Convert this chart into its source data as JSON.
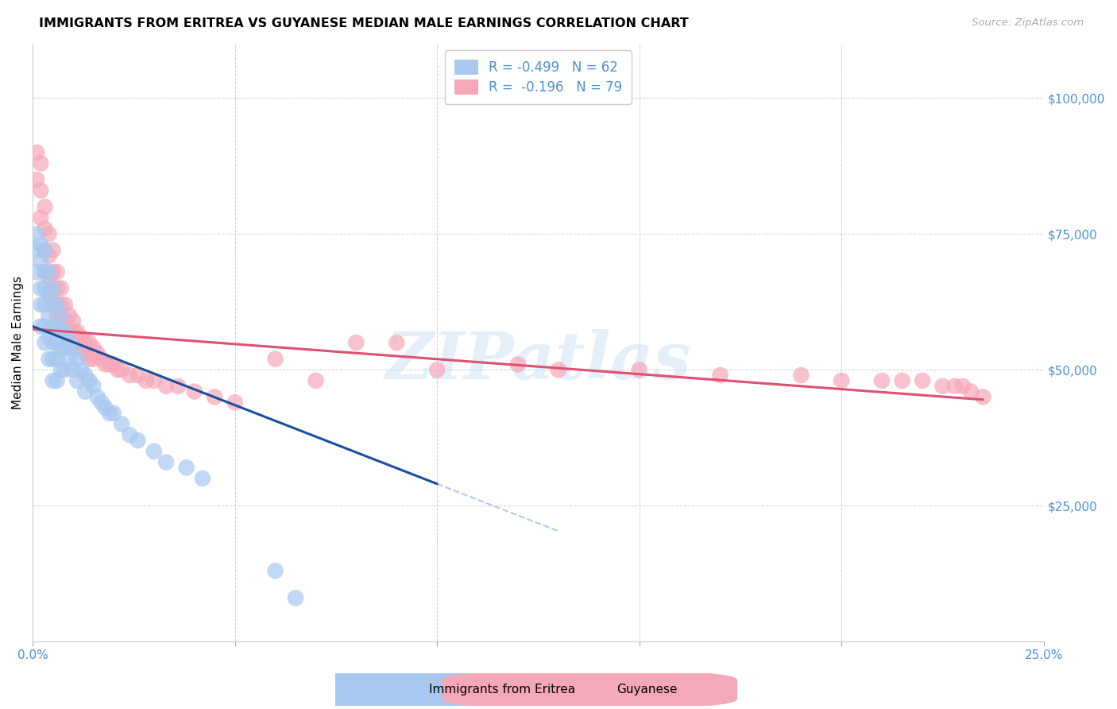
{
  "title": "IMMIGRANTS FROM ERITREA VS GUYANESE MEDIAN MALE EARNINGS CORRELATION CHART",
  "source": "Source: ZipAtlas.com",
  "ylabel": "Median Male Earnings",
  "xlim": [
    0.0,
    0.25
  ],
  "ylim": [
    0,
    110000
  ],
  "legend1_label": "R = -0.499   N = 62",
  "legend2_label": "R =  -0.196   N = 79",
  "legend1_color": "#a8c8f0",
  "legend2_color": "#f5a8b8",
  "line1_color": "#1a4fa0",
  "line2_color": "#e05070",
  "line1_dash_color": "#b0c8e8",
  "watermark": "ZIPatlas",
  "bottom_legend1": "Immigrants from Eritrea",
  "bottom_legend2": "Guyanese",
  "tick_color": "#4a90d9",
  "eritrea_x": [
    0.001,
    0.001,
    0.001,
    0.002,
    0.002,
    0.002,
    0.002,
    0.002,
    0.003,
    0.003,
    0.003,
    0.003,
    0.003,
    0.003,
    0.004,
    0.004,
    0.004,
    0.004,
    0.004,
    0.005,
    0.005,
    0.005,
    0.005,
    0.005,
    0.005,
    0.006,
    0.006,
    0.006,
    0.006,
    0.006,
    0.007,
    0.007,
    0.007,
    0.007,
    0.008,
    0.008,
    0.008,
    0.009,
    0.009,
    0.01,
    0.01,
    0.011,
    0.011,
    0.012,
    0.013,
    0.013,
    0.014,
    0.015,
    0.016,
    0.017,
    0.018,
    0.019,
    0.02,
    0.022,
    0.024,
    0.026,
    0.03,
    0.033,
    0.038,
    0.042,
    0.06,
    0.065
  ],
  "eritrea_y": [
    75000,
    72000,
    68000,
    73000,
    70000,
    65000,
    62000,
    58000,
    72000,
    68000,
    65000,
    62000,
    58000,
    55000,
    68000,
    64000,
    60000,
    56000,
    52000,
    65000,
    62000,
    58000,
    55000,
    52000,
    48000,
    62000,
    58000,
    55000,
    52000,
    48000,
    60000,
    57000,
    54000,
    50000,
    57000,
    54000,
    50000,
    55000,
    52000,
    54000,
    50000,
    52000,
    48000,
    50000,
    49000,
    46000,
    48000,
    47000,
    45000,
    44000,
    43000,
    42000,
    42000,
    40000,
    38000,
    37000,
    35000,
    33000,
    32000,
    30000,
    13000,
    8000
  ],
  "guyanese_x": [
    0.001,
    0.001,
    0.002,
    0.002,
    0.002,
    0.003,
    0.003,
    0.003,
    0.003,
    0.004,
    0.004,
    0.004,
    0.004,
    0.005,
    0.005,
    0.005,
    0.005,
    0.006,
    0.006,
    0.006,
    0.006,
    0.007,
    0.007,
    0.007,
    0.007,
    0.008,
    0.008,
    0.008,
    0.009,
    0.009,
    0.009,
    0.01,
    0.01,
    0.01,
    0.011,
    0.011,
    0.012,
    0.012,
    0.013,
    0.013,
    0.014,
    0.014,
    0.015,
    0.015,
    0.016,
    0.017,
    0.018,
    0.019,
    0.02,
    0.021,
    0.022,
    0.024,
    0.026,
    0.028,
    0.03,
    0.033,
    0.036,
    0.04,
    0.045,
    0.05,
    0.06,
    0.07,
    0.08,
    0.09,
    0.1,
    0.12,
    0.13,
    0.15,
    0.17,
    0.19,
    0.2,
    0.21,
    0.215,
    0.22,
    0.225,
    0.228,
    0.23,
    0.232,
    0.235
  ],
  "guyanese_y": [
    90000,
    85000,
    88000,
    83000,
    78000,
    80000,
    76000,
    72000,
    68000,
    75000,
    71000,
    67000,
    64000,
    72000,
    68000,
    65000,
    62000,
    68000,
    65000,
    62000,
    60000,
    65000,
    62000,
    59000,
    57000,
    62000,
    59000,
    57000,
    60000,
    57000,
    55000,
    59000,
    57000,
    55000,
    57000,
    54000,
    56000,
    54000,
    55000,
    53000,
    55000,
    52000,
    54000,
    52000,
    53000,
    52000,
    51000,
    51000,
    51000,
    50000,
    50000,
    49000,
    49000,
    48000,
    48000,
    47000,
    47000,
    46000,
    45000,
    44000,
    52000,
    48000,
    55000,
    55000,
    50000,
    51000,
    50000,
    50000,
    49000,
    49000,
    48000,
    48000,
    48000,
    48000,
    47000,
    47000,
    47000,
    46000,
    45000
  ],
  "line1_x0": 0.0,
  "line1_y0": 58000,
  "line1_x1": 0.1,
  "line1_y1": 29000,
  "line1_dash_x1": 0.13,
  "line2_x0": 0.0,
  "line2_y0": 57500,
  "line2_x1": 0.235,
  "line2_y1": 44500
}
